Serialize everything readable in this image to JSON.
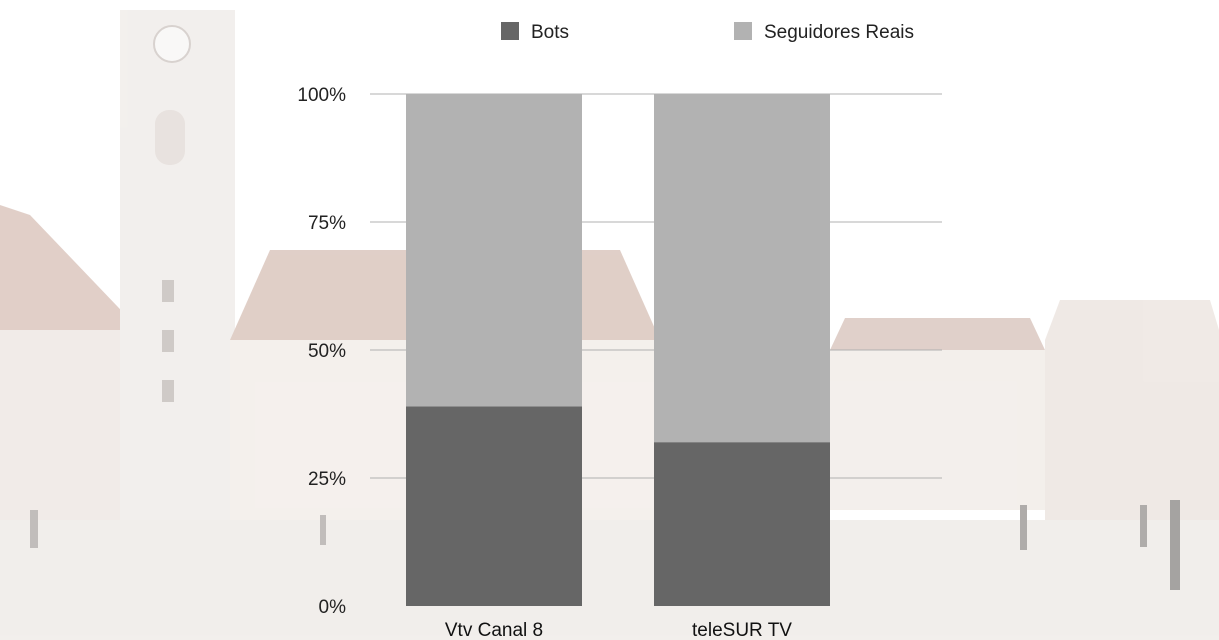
{
  "chart_data": {
    "type": "bar",
    "stacked": true,
    "categories": [
      "Vtv Canal 8",
      "teleSUR TV"
    ],
    "series": [
      {
        "name": "Bots",
        "color": "#666666",
        "values": [
          39,
          32
        ]
      },
      {
        "name": "Seguidores Reais",
        "color": "#b2b2b2",
        "values": [
          61,
          68
        ]
      }
    ],
    "yticks": [
      "0%",
      "25%",
      "50%",
      "75%",
      "100%"
    ],
    "ylim": [
      0,
      100
    ],
    "grid": true,
    "legend_position": "top",
    "title": "",
    "xlabel": "",
    "ylabel": ""
  },
  "background": {
    "description_icon": "university-courtyard-photo",
    "sky_color": "#ffffff",
    "building_color": "#e8ddd6",
    "roof_color": "#c9a99c"
  }
}
